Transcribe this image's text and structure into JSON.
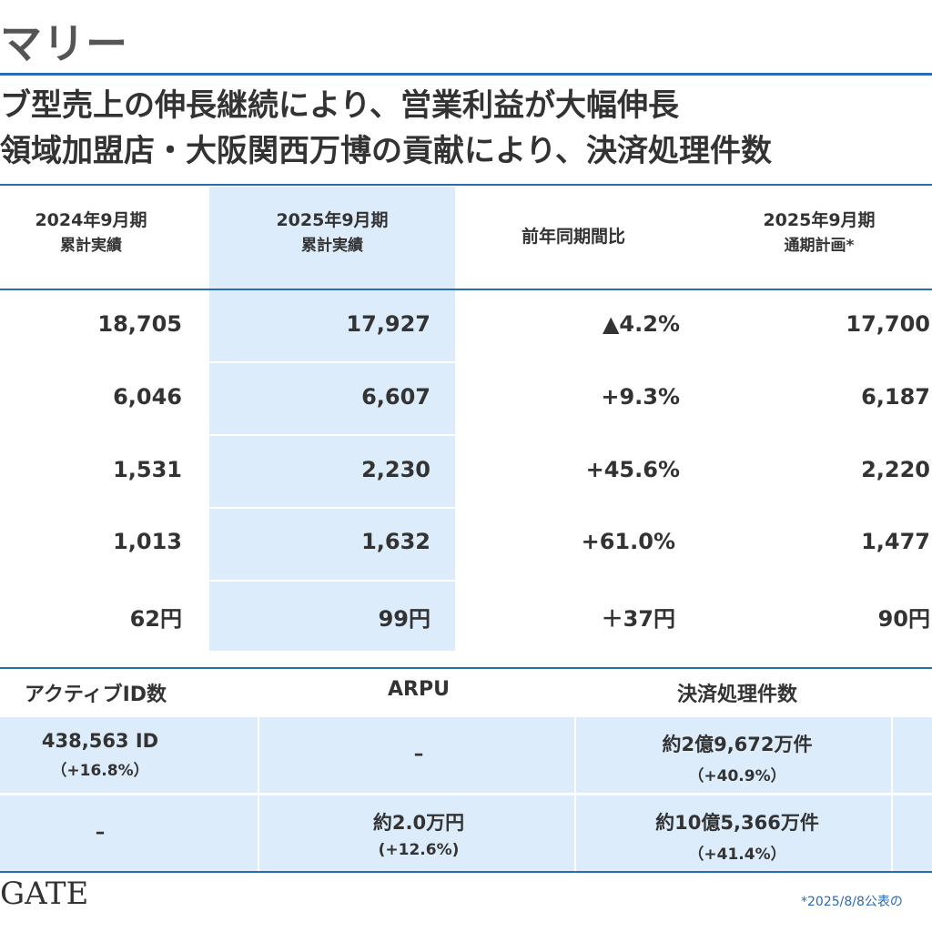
{
  "page": {
    "title": "マリー",
    "headline1": "ブ型売上の伸長継続により、営業利益が大幅伸長",
    "headline2": "領域加盟店・大阪関西万博の貢献により、決済処理件数"
  },
  "table": {
    "headers": [
      {
        "line1": "2024年9月期",
        "line2": "累計実績"
      },
      {
        "line1": "2025年9月期",
        "line2": "累計実績"
      },
      {
        "line1": "前年同期間比",
        "line2": ""
      },
      {
        "line1": "2025年9月期",
        "line2": "通期計画*"
      }
    ],
    "rows": [
      [
        "18,705",
        "17,927",
        "▲4.2%",
        "17,700"
      ],
      [
        "6,046",
        "6,607",
        "+9.3%",
        "6,187"
      ],
      [
        "1,531",
        "2,230",
        "+45.6%",
        "2,220"
      ],
      [
        "1,013",
        "1,632",
        "+61.0%",
        "1,477"
      ],
      [
        "62円",
        "99円",
        "＋37円",
        "90円"
      ]
    ]
  },
  "kpi": {
    "headers": [
      "アクティブID数",
      "ARPU",
      "決済処理件数"
    ],
    "rows": [
      [
        {
          "value": "438,563 ID",
          "change": "（+16.8%）"
        },
        {
          "value": "–",
          "change": ""
        },
        {
          "value": "約2億9,672万件",
          "change": "（+40.9%）"
        }
      ],
      [
        {
          "value": "–",
          "change": ""
        },
        {
          "value": "約2.0万円",
          "change": "(+12.6%)"
        },
        {
          "value": "約10億5,366万件",
          "change": "（+41.4%）"
        }
      ]
    ]
  },
  "footer": {
    "logo": "GATE",
    "footnote": "*2025/8/8公表の"
  },
  "colors": {
    "accent": "#2a6bb5",
    "highlight": "#dcecfb"
  }
}
